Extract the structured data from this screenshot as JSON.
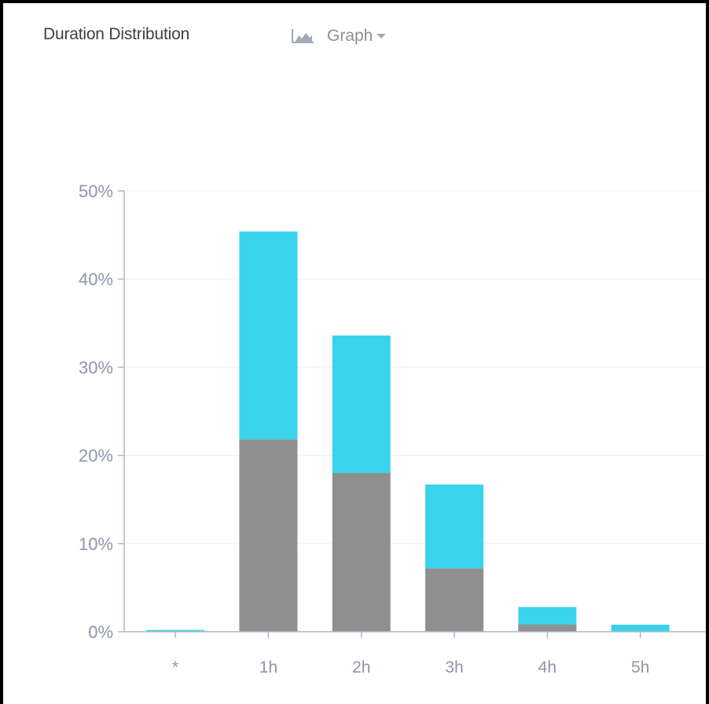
{
  "header": {
    "title": "Duration Distribution",
    "view_toggle_label": "Graph",
    "view_toggle_icon": "area-chart-icon",
    "dropdown_icon": "chevron-down-icon"
  },
  "colors": {
    "series_top": "#3ad3eb",
    "series_bottom": "#8f8f8f",
    "axis": "#aeb6c8",
    "grid": "#eef0f4",
    "tick_text": "#8d96a8"
  },
  "chart_data": {
    "type": "bar",
    "stacked": true,
    "categories": [
      "*",
      "1h",
      "2h",
      "3h",
      "4h",
      "5h"
    ],
    "series": [
      {
        "values": [
          0,
          21.8,
          18.0,
          7.2,
          0.8,
          0
        ]
      },
      {
        "values": [
          0.2,
          23.6,
          15.6,
          9.5,
          2.0,
          0.8
        ]
      }
    ],
    "ylim": [
      0,
      50
    ],
    "yticks": [
      "0%",
      "10%",
      "20%",
      "30%",
      "40%",
      "50%"
    ],
    "ytick_values": [
      0,
      10,
      20,
      30,
      40,
      50
    ],
    "grid": true,
    "legend": "none",
    "title": "",
    "xlabel": "",
    "ylabel": ""
  }
}
